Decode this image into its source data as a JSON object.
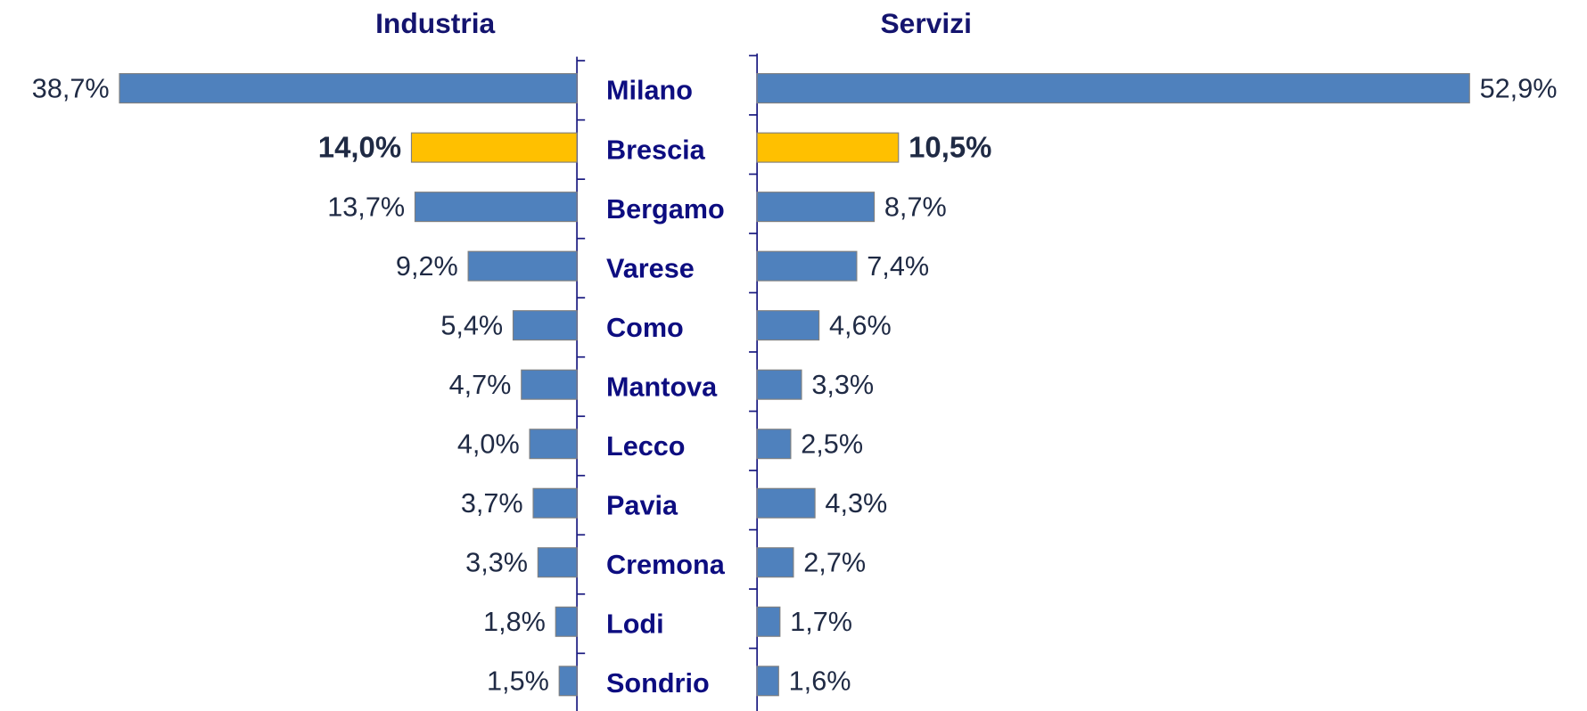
{
  "chart_data": {
    "type": "bar",
    "categories": [
      "Milano",
      "Brescia",
      "Bergamo",
      "Varese",
      "Como",
      "Mantova",
      "Lecco",
      "Pavia",
      "Cremona",
      "Lodi",
      "Sondrio"
    ],
    "series": [
      {
        "name": "Industria",
        "color": "#4f81bd",
        "point_colors": [
          "#4f81bd",
          "#ffc000",
          "#4f81bd",
          "#4f81bd",
          "#4f81bd",
          "#4f81bd",
          "#4f81bd",
          "#4f81bd",
          "#4f81bd",
          "#4f81bd",
          "#4f81bd"
        ],
        "values": [
          38.7,
          14.0,
          13.7,
          9.2,
          5.4,
          4.7,
          4.0,
          3.7,
          3.3,
          1.8,
          1.5
        ],
        "value_labels": [
          "38,7%",
          "14,0%",
          "13,7%",
          "9,2%",
          "5,4%",
          "4,7%",
          "4,0%",
          "3,7%",
          "3,3%",
          "1,8%",
          "1,5%"
        ]
      },
      {
        "name": "Servizi",
        "color": "#4f81bd",
        "point_colors": [
          "#4f81bd",
          "#ffc000",
          "#4f81bd",
          "#4f81bd",
          "#4f81bd",
          "#4f81bd",
          "#4f81bd",
          "#4f81bd",
          "#4f81bd",
          "#4f81bd",
          "#4f81bd"
        ],
        "values": [
          52.9,
          10.5,
          8.7,
          7.4,
          4.6,
          3.3,
          2.5,
          4.3,
          2.7,
          1.7,
          1.6
        ],
        "value_labels": [
          "52,9%",
          "10,5%",
          "8,7%",
          "7,4%",
          "4,6%",
          "3,3%",
          "2,5%",
          "4,3%",
          "2,7%",
          "1,7%",
          "1,6%"
        ]
      }
    ]
  }
}
